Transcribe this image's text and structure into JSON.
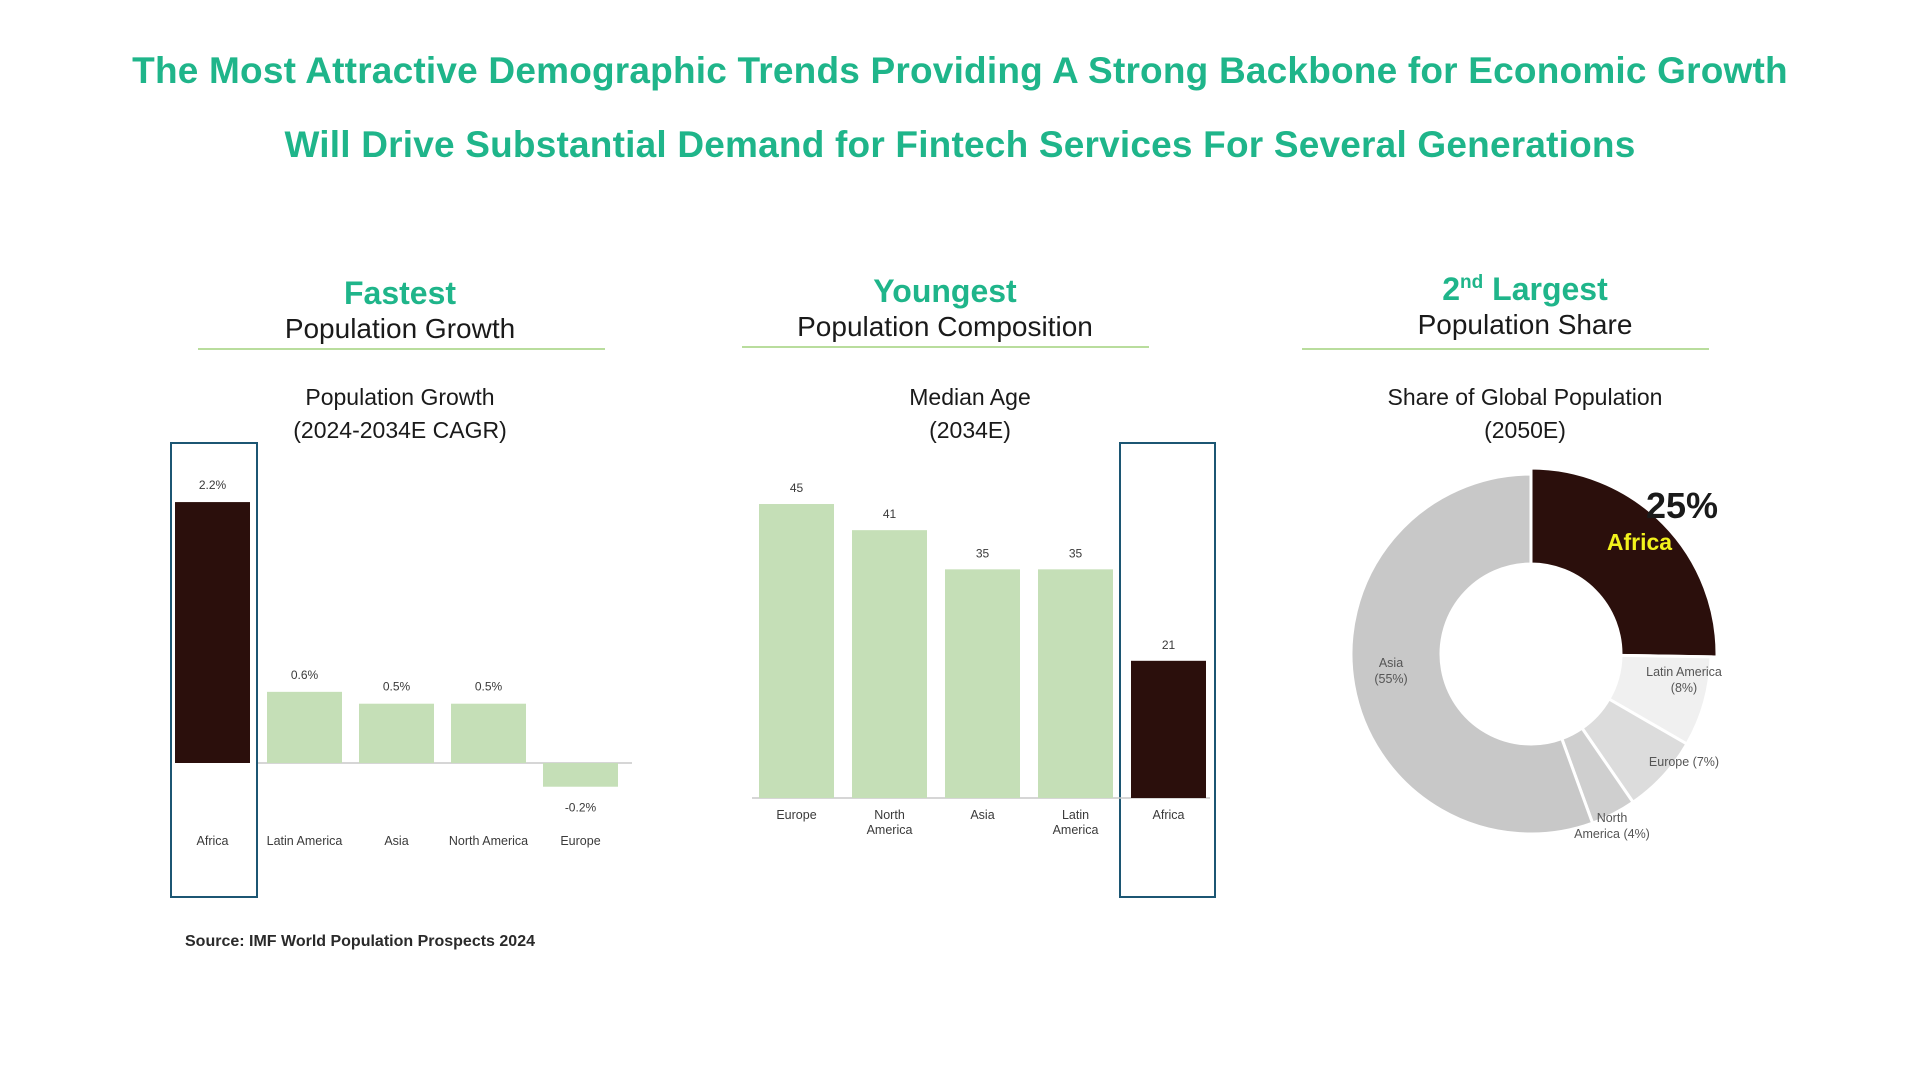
{
  "headline": {
    "line1": "The Most Attractive Demographic Trends Providing A Strong Backbone for Economic Growth",
    "line2": "Will Drive Substantial Demand for Fintech Services For Several Generations"
  },
  "panels": [
    {
      "kicker": "Fastest",
      "kicker_sup": "",
      "kicker_rest": "",
      "subtitle": "Population Growth"
    },
    {
      "kicker": "Youngest",
      "kicker_sup": "",
      "kicker_rest": "",
      "subtitle": "Population Composition"
    },
    {
      "kicker": "2",
      "kicker_sup": "nd",
      "kicker_rest": " Largest",
      "subtitle": "Population Share"
    }
  ],
  "colors": {
    "accent": "#1fb58a",
    "highlight_bar": "#2b0f0c",
    "bar": "#c5dfb7",
    "box": "#1c5673",
    "donut_label": "#f2f21c"
  },
  "chart_data": [
    {
      "type": "bar",
      "title": "Population Growth",
      "subtitle": "(2024-2034E CAGR)",
      "categories": [
        "Africa",
        "Latin America",
        "Asia",
        "North America",
        "Europe"
      ],
      "values": [
        2.2,
        0.6,
        0.5,
        0.5,
        -0.2
      ],
      "value_labels": [
        "2.2%",
        "0.6%",
        "0.5%",
        "0.5%",
        "-0.2%"
      ],
      "highlight": "Africa",
      "ylim": [
        -0.2,
        2.2
      ]
    },
    {
      "type": "bar",
      "title": "Median Age",
      "subtitle": "(2034E)",
      "categories": [
        "Europe",
        "North America",
        "Asia",
        "Latin America",
        "Africa"
      ],
      "category_lines": [
        [
          "Europe"
        ],
        [
          "North",
          "America"
        ],
        [
          "Asia"
        ],
        [
          "Latin",
          "America"
        ],
        [
          "Africa"
        ]
      ],
      "values": [
        45,
        41,
        35,
        35,
        21
      ],
      "value_labels": [
        "45",
        "41",
        "35",
        "35",
        "21"
      ],
      "highlight": "Africa",
      "ylim": [
        0,
        45
      ]
    },
    {
      "type": "pie",
      "title": "Share of Global Population",
      "subtitle": "(2050E)",
      "slices": [
        {
          "label": "Africa",
          "value": 25,
          "label_lines": [
            "Africa"
          ]
        },
        {
          "label": "Latin America",
          "value": 8,
          "label_lines": [
            "Latin America",
            "(8%)"
          ]
        },
        {
          "label": "Europe",
          "value": 7,
          "label_lines": [
            "Europe (7%)"
          ]
        },
        {
          "label": "North America",
          "value": 4,
          "label_lines": [
            "North",
            "America (4%)"
          ]
        },
        {
          "label": "Asia",
          "value": 55,
          "label_lines": [
            "Asia",
            "(55%)"
          ]
        }
      ],
      "callout": "25%",
      "slice_colors": [
        "#2b0f0c",
        "#f0f0f0",
        "#dcdcdc",
        "#cfcfcf",
        "#c8c8c8"
      ]
    }
  ],
  "source": "Source: IMF World Population Prospects 2024"
}
